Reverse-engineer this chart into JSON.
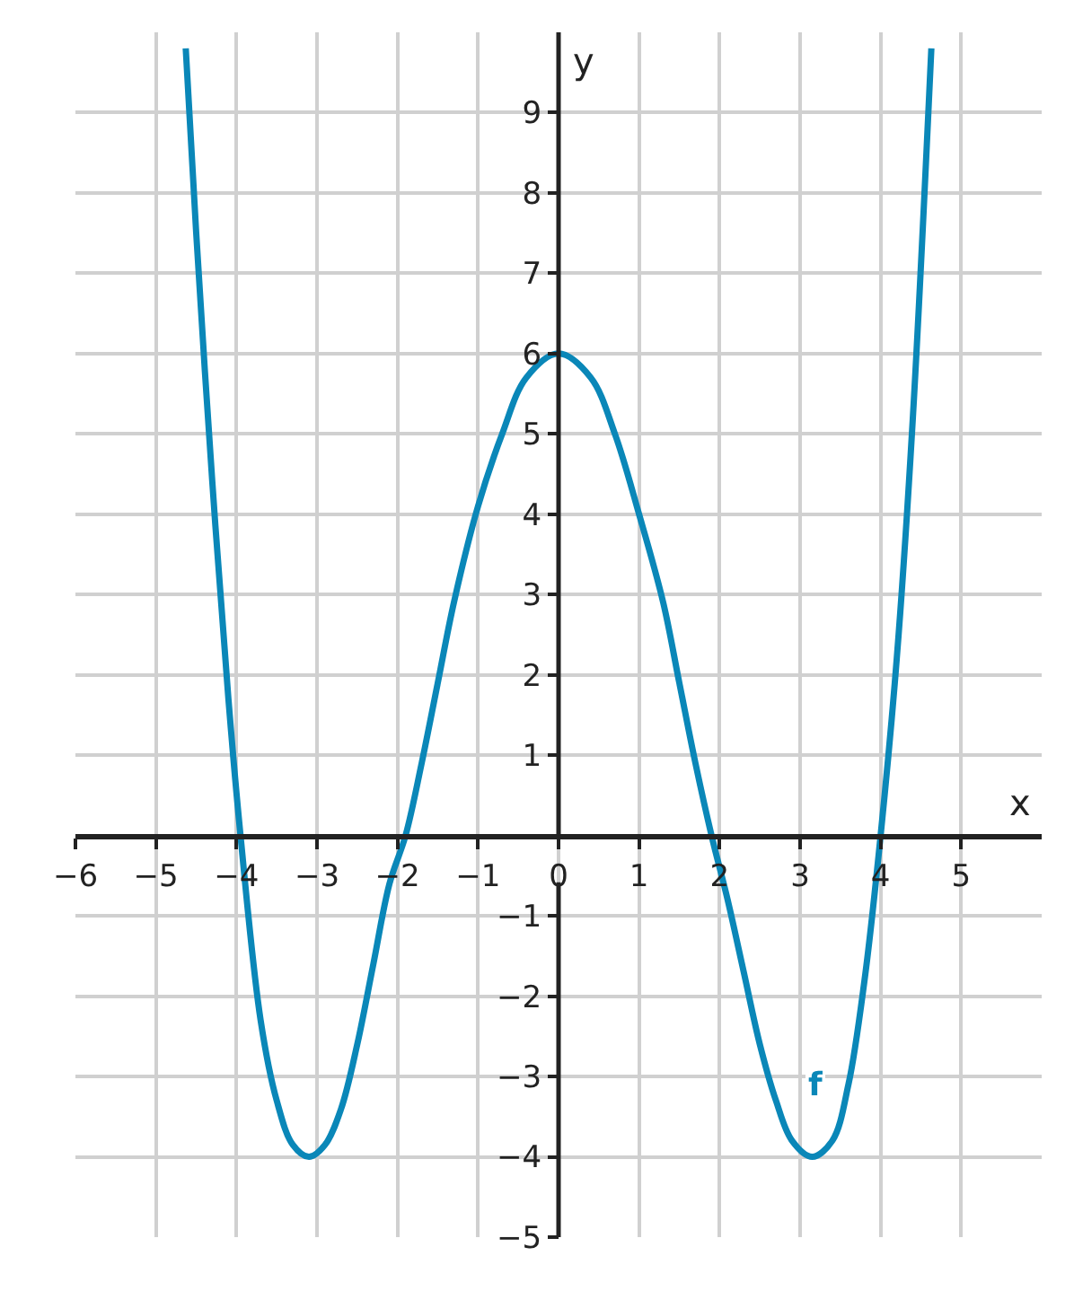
{
  "chart_data": {
    "type": "line",
    "xlabel": "x",
    "ylabel": "y",
    "xlim": [
      -6,
      6
    ],
    "ylim": [
      -5,
      10
    ],
    "xticks": [
      -6,
      -5,
      -4,
      -3,
      -2,
      -1,
      0,
      1,
      2,
      3,
      4,
      5
    ],
    "yticks": [
      -5,
      -4,
      -3,
      -2,
      -1,
      1,
      2,
      3,
      4,
      5,
      6,
      7,
      8,
      9
    ],
    "grid": true,
    "legend": false,
    "series": [
      {
        "name": "f",
        "color": "#0a87b8",
        "x": [
          -4.63,
          -4.5,
          -4.3,
          -4.1,
          -3.95,
          -3.7,
          -3.5,
          -3.3,
          -3.1,
          -2.9,
          -2.7,
          -2.5,
          -2.3,
          -2.1,
          -1.9,
          -1.7,
          -1.5,
          -1.3,
          -1,
          -0.7,
          -0.4,
          0,
          0.4,
          0.7,
          1,
          1.3,
          1.5,
          1.7,
          1.9,
          2.1,
          2.3,
          2.5,
          2.7,
          2.9,
          3.15,
          3.4,
          3.6,
          3.8,
          4.0,
          4.2,
          4.4,
          4.63
        ],
        "values": [
          9.8,
          7.5,
          4.4,
          1.7,
          0,
          -2.3,
          -3.3,
          -3.85,
          -4,
          -3.85,
          -3.4,
          -2.6,
          -1.6,
          -0.6,
          0,
          0.9,
          1.9,
          2.9,
          4.1,
          5.0,
          5.7,
          6,
          5.7,
          5.0,
          4.0,
          2.9,
          1.9,
          0.9,
          0,
          -0.8,
          -1.7,
          -2.6,
          -3.3,
          -3.8,
          -4,
          -3.8,
          -3.1,
          -1.8,
          0,
          2.2,
          5.2,
          9.8
        ]
      }
    ]
  }
}
